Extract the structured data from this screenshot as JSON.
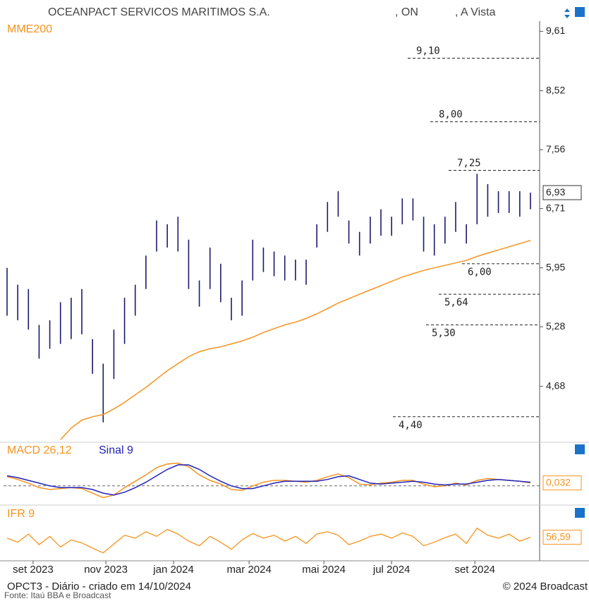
{
  "chart_data": {
    "type": "ohlc",
    "title": "OCEANPACT SERVICOS MARITIMOS S.A.",
    "share_class": ", ON",
    "market": ", A Vista",
    "log_scale": true,
    "ylim": [
      4.19,
      9.81
    ],
    "yticks": [
      {
        "value": 9.61,
        "label": "9,61"
      },
      {
        "value": 8.52,
        "label": "8,52"
      },
      {
        "value": 7.56,
        "label": "7,56"
      },
      {
        "value": 6.71,
        "label": "6,71"
      },
      {
        "value": 5.95,
        "label": "5,95"
      },
      {
        "value": 5.28,
        "label": "5,28"
      },
      {
        "value": 4.68,
        "label": "4,68"
      }
    ],
    "xticks": [
      {
        "value": 2.44,
        "label": "set 2023"
      },
      {
        "value": 9.25,
        "label": "nov 2023"
      },
      {
        "value": 15.59,
        "label": "jan 2024"
      },
      {
        "value": 22.66,
        "label": "mar 2024"
      },
      {
        "value": 29.66,
        "label": "mai 2024"
      },
      {
        "value": 36.0,
        "label": "jul 2024"
      },
      {
        "value": 43.8,
        "label": "set 2024"
      }
    ],
    "price_color": "#1a1a6e",
    "high": [
      5.95,
      5.75,
      5.7,
      5.3,
      5.35,
      5.55,
      5.6,
      5.7,
      5.15,
      4.9,
      5.25,
      5.6,
      5.75,
      6.1,
      6.55,
      6.5,
      6.6,
      6.3,
      5.8,
      6.2,
      6.0,
      5.6,
      5.8,
      6.3,
      6.2,
      6.15,
      6.1,
      6.05,
      6.05,
      6.5,
      6.8,
      6.95,
      6.55,
      6.4,
      6.6,
      6.7,
      6.6,
      6.85,
      6.85,
      6.6,
      6.5,
      6.6,
      6.8,
      6.5,
      7.2,
      7.05,
      6.95,
      6.95,
      6.95,
      6.93
    ],
    "low": [
      5.4,
      5.35,
      5.25,
      4.95,
      5.05,
      5.1,
      5.15,
      5.2,
      4.8,
      4.35,
      4.75,
      5.1,
      5.4,
      5.7,
      6.15,
      6.2,
      6.15,
      5.7,
      5.5,
      5.7,
      5.55,
      5.35,
      5.4,
      5.8,
      5.9,
      5.85,
      5.8,
      5.8,
      5.75,
      6.2,
      6.4,
      6.6,
      6.25,
      6.1,
      6.25,
      6.35,
      6.35,
      6.5,
      6.55,
      6.15,
      6.1,
      6.25,
      6.4,
      6.25,
      6.5,
      6.6,
      6.65,
      6.65,
      6.6,
      6.7
    ],
    "last_price": {
      "value": 6.93,
      "label": "6,93"
    },
    "mme": {
      "name": "MME200",
      "color": "#f7931e",
      "values": [
        null,
        null,
        null,
        null,
        null,
        4.2,
        4.3,
        4.37,
        4.4,
        4.42,
        4.47,
        4.53,
        4.6,
        4.67,
        4.75,
        4.83,
        4.9,
        4.97,
        5.02,
        5.05,
        5.07,
        5.1,
        5.13,
        5.17,
        5.22,
        5.26,
        5.3,
        5.33,
        5.37,
        5.42,
        5.48,
        5.54,
        5.59,
        5.64,
        5.69,
        5.74,
        5.79,
        5.84,
        5.88,
        5.92,
        5.95,
        5.98,
        6.01,
        6.04,
        6.09,
        6.13,
        6.17,
        6.21,
        6.25,
        6.29
      ]
    },
    "levels": [
      {
        "value": 9.1,
        "label": "9,10"
      },
      {
        "value": 8.0,
        "label": "8,00"
      },
      {
        "value": 7.25,
        "label": "7,25"
      },
      {
        "value": 6.0,
        "label": "6,00"
      },
      {
        "value": 5.64,
        "label": "5,64"
      },
      {
        "value": 5.3,
        "label": "5,30"
      },
      {
        "value": 4.4,
        "label": "4,40"
      }
    ],
    "macd": {
      "ylim": [
        -0.18,
        0.3
      ],
      "zero": 0,
      "series": [
        {
          "name": "MACD 26,12",
          "color": "#f7931e",
          "values": [
            0.1,
            0.07,
            0.03,
            -0.02,
            -0.04,
            -0.03,
            -0.02,
            -0.03,
            -0.08,
            -0.13,
            -0.1,
            -0.02,
            0.05,
            0.12,
            0.2,
            0.24,
            0.25,
            0.21,
            0.12,
            0.06,
            0.02,
            -0.04,
            -0.05,
            0.0,
            0.04,
            0.06,
            0.06,
            0.05,
            0.04,
            0.06,
            0.1,
            0.13,
            0.09,
            0.02,
            0.01,
            0.03,
            0.04,
            0.06,
            0.06,
            0.02,
            -0.01,
            0.0,
            0.03,
            0.01,
            0.06,
            0.08,
            0.07,
            0.06,
            0.05,
            0.032
          ],
          "last_label": "0,032"
        },
        {
          "name": "Sinal 9",
          "color": "#2222bb",
          "values": [
            0.11,
            0.09,
            0.06,
            0.03,
            0.0,
            -0.02,
            -0.02,
            -0.02,
            -0.04,
            -0.08,
            -0.1,
            -0.07,
            -0.02,
            0.04,
            0.11,
            0.18,
            0.23,
            0.23,
            0.18,
            0.11,
            0.05,
            0.0,
            -0.03,
            -0.03,
            0.0,
            0.03,
            0.05,
            0.05,
            0.05,
            0.05,
            0.07,
            0.1,
            0.11,
            0.07,
            0.03,
            0.02,
            0.03,
            0.04,
            0.05,
            0.04,
            0.02,
            0.01,
            0.02,
            0.02,
            0.04,
            0.06,
            0.07,
            0.06,
            0.05,
            0.04
          ]
        }
      ]
    },
    "ifr": {
      "name": "IFR 9",
      "color": "#f7931e",
      "ylim": [
        20,
        85
      ],
      "values": [
        55,
        48,
        62,
        44,
        58,
        40,
        52,
        47,
        38,
        30,
        45,
        60,
        55,
        66,
        58,
        70,
        62,
        50,
        42,
        58,
        48,
        36,
        52,
        63,
        55,
        60,
        50,
        58,
        46,
        62,
        66,
        60,
        44,
        50,
        58,
        62,
        55,
        64,
        58,
        42,
        48,
        56,
        62,
        46,
        72,
        60,
        55,
        62,
        50,
        56.59
      ],
      "last_label": "56,59"
    },
    "footer_left": "OPCT3 - Diário - criado em 14/10/2024",
    "footer_right": "© 2024 Broadcast",
    "source": "Fonte: Itaú BBA e Broadcast"
  }
}
